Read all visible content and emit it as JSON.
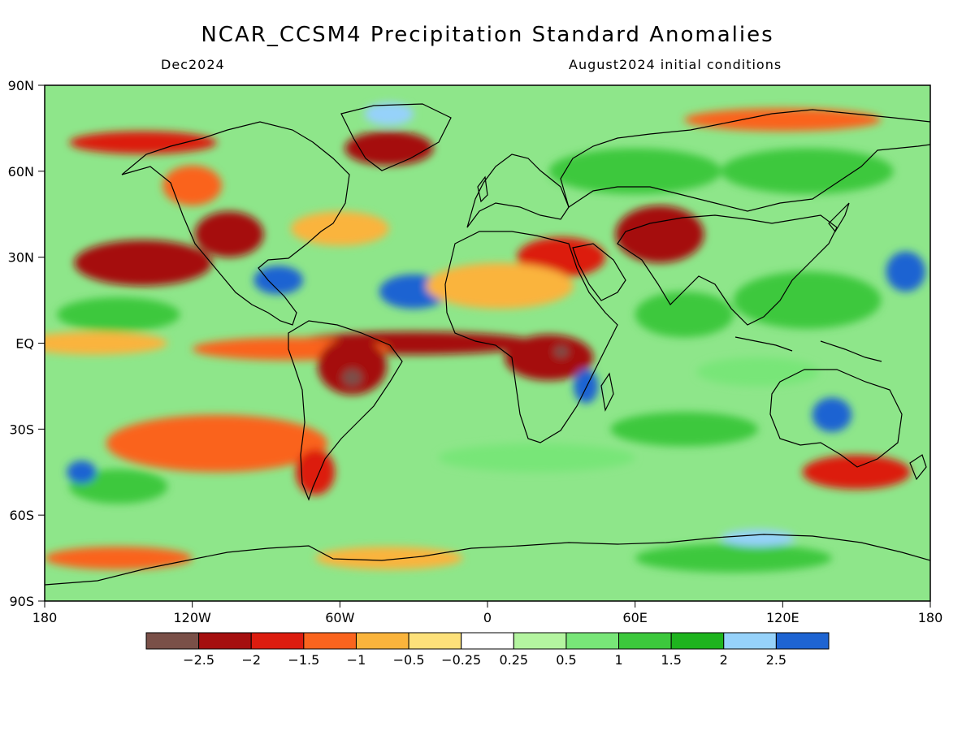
{
  "title": "NCAR_CCSM4 Precipitation Standard Anomalies",
  "subtitle_left": "Dec2024",
  "subtitle_right": "August2024 initial conditions",
  "lat_labels": [
    "90N",
    "60N",
    "30N",
    "EQ",
    "30S",
    "60S",
    "90S"
  ],
  "lon_labels": [
    "180",
    "120W",
    "60W",
    "0",
    "60E",
    "120E",
    "180"
  ],
  "colorbar": {
    "colors": [
      "#7a5048",
      "#a50f0f",
      "#dc1c0f",
      "#fa641e",
      "#fab43c",
      "#fde17a",
      "#ffffff",
      "#b4f5a0",
      "#78e678",
      "#3cc83c",
      "#1eb41e",
      "#96d2fa",
      "#1e64d2"
    ],
    "labels": [
      "−2.5",
      "−2",
      "−1.5",
      "−1",
      "−0.5",
      "−0.25",
      "0.25",
      "0.5",
      "1",
      "1.5",
      "2",
      "2.5"
    ]
  },
  "anomaly_regions": [
    {
      "lon": -140,
      "lat": 28,
      "rx": 28,
      "ry": 8,
      "level": 1
    },
    {
      "lon": -105,
      "lat": 38,
      "rx": 14,
      "ry": 8,
      "level": 1
    },
    {
      "lon": -120,
      "lat": 55,
      "rx": 12,
      "ry": 7,
      "level": 3
    },
    {
      "lon": -140,
      "lat": 70,
      "rx": 30,
      "ry": 4,
      "level": 2
    },
    {
      "lon": -40,
      "lat": 68,
      "rx": 18,
      "ry": 6,
      "level": 1
    },
    {
      "lon": -40,
      "lat": 80,
      "rx": 10,
      "ry": 4,
      "level": 11
    },
    {
      "lon": -30,
      "lat": 18,
      "rx": 14,
      "ry": 6,
      "level": 12
    },
    {
      "lon": -85,
      "lat": 22,
      "rx": 10,
      "ry": 5,
      "level": 12
    },
    {
      "lon": -30,
      "lat": 0,
      "rx": 50,
      "ry": 4,
      "level": 1
    },
    {
      "lon": -160,
      "lat": 0,
      "rx": 30,
      "ry": 4,
      "level": 4
    },
    {
      "lon": -80,
      "lat": -2,
      "rx": 40,
      "ry": 4,
      "level": 3
    },
    {
      "lon": -55,
      "lat": -8,
      "rx": 14,
      "ry": 10,
      "level": 1
    },
    {
      "lon": -55,
      "lat": -12,
      "rx": 4,
      "ry": 3,
      "level": 0
    },
    {
      "lon": 25,
      "lat": -5,
      "rx": 18,
      "ry": 8,
      "level": 1
    },
    {
      "lon": 30,
      "lat": -3,
      "rx": 3,
      "ry": 2,
      "level": 0
    },
    {
      "lon": 30,
      "lat": 30,
      "rx": 18,
      "ry": 7,
      "level": 2
    },
    {
      "lon": 70,
      "lat": 38,
      "rx": 18,
      "ry": 10,
      "level": 1
    },
    {
      "lon": 150,
      "lat": -45,
      "rx": 22,
      "ry": 6,
      "level": 2
    },
    {
      "lon": -110,
      "lat": -35,
      "rx": 45,
      "ry": 10,
      "level": 3
    },
    {
      "lon": 40,
      "lat": -15,
      "rx": 5,
      "ry": 6,
      "level": 12
    },
    {
      "lon": 140,
      "lat": -25,
      "rx": 8,
      "ry": 6,
      "level": 12
    },
    {
      "lon": 170,
      "lat": 25,
      "rx": 8,
      "ry": 7,
      "level": 12
    },
    {
      "lon": 130,
      "lat": 15,
      "rx": 30,
      "ry": 10,
      "level": 9
    },
    {
      "lon": 80,
      "lat": 10,
      "rx": 20,
      "ry": 8,
      "level": 9
    },
    {
      "lon": -150,
      "lat": 10,
      "rx": 25,
      "ry": 6,
      "level": 9
    },
    {
      "lon": 20,
      "lat": -40,
      "rx": 40,
      "ry": 5,
      "level": 8
    },
    {
      "lon": -150,
      "lat": -50,
      "rx": 20,
      "ry": 6,
      "level": 9
    },
    {
      "lon": -165,
      "lat": -45,
      "rx": 6,
      "ry": 4,
      "level": 12
    },
    {
      "lon": 60,
      "lat": 60,
      "rx": 35,
      "ry": 8,
      "level": 9
    },
    {
      "lon": 130,
      "lat": 60,
      "rx": 35,
      "ry": 8,
      "level": 9
    },
    {
      "lon": 120,
      "lat": 78,
      "rx": 40,
      "ry": 4,
      "level": 3
    },
    {
      "lon": 100,
      "lat": -75,
      "rx": 40,
      "ry": 5,
      "level": 9
    },
    {
      "lon": 110,
      "lat": -68,
      "rx": 15,
      "ry": 3,
      "level": 11
    },
    {
      "lon": -150,
      "lat": -75,
      "rx": 30,
      "ry": 4,
      "level": 3
    },
    {
      "lon": -40,
      "lat": -75,
      "rx": 30,
      "ry": 4,
      "level": 4
    },
    {
      "lon": 5,
      "lat": 20,
      "rx": 30,
      "ry": 8,
      "level": 4
    },
    {
      "lon": -60,
      "lat": 40,
      "rx": 20,
      "ry": 6,
      "level": 4
    },
    {
      "lon": -70,
      "lat": -45,
      "rx": 8,
      "ry": 8,
      "level": 2
    },
    {
      "lon": 80,
      "lat": -30,
      "rx": 30,
      "ry": 6,
      "level": 9
    },
    {
      "lon": 110,
      "lat": -10,
      "rx": 25,
      "ry": 5,
      "level": 8
    }
  ]
}
